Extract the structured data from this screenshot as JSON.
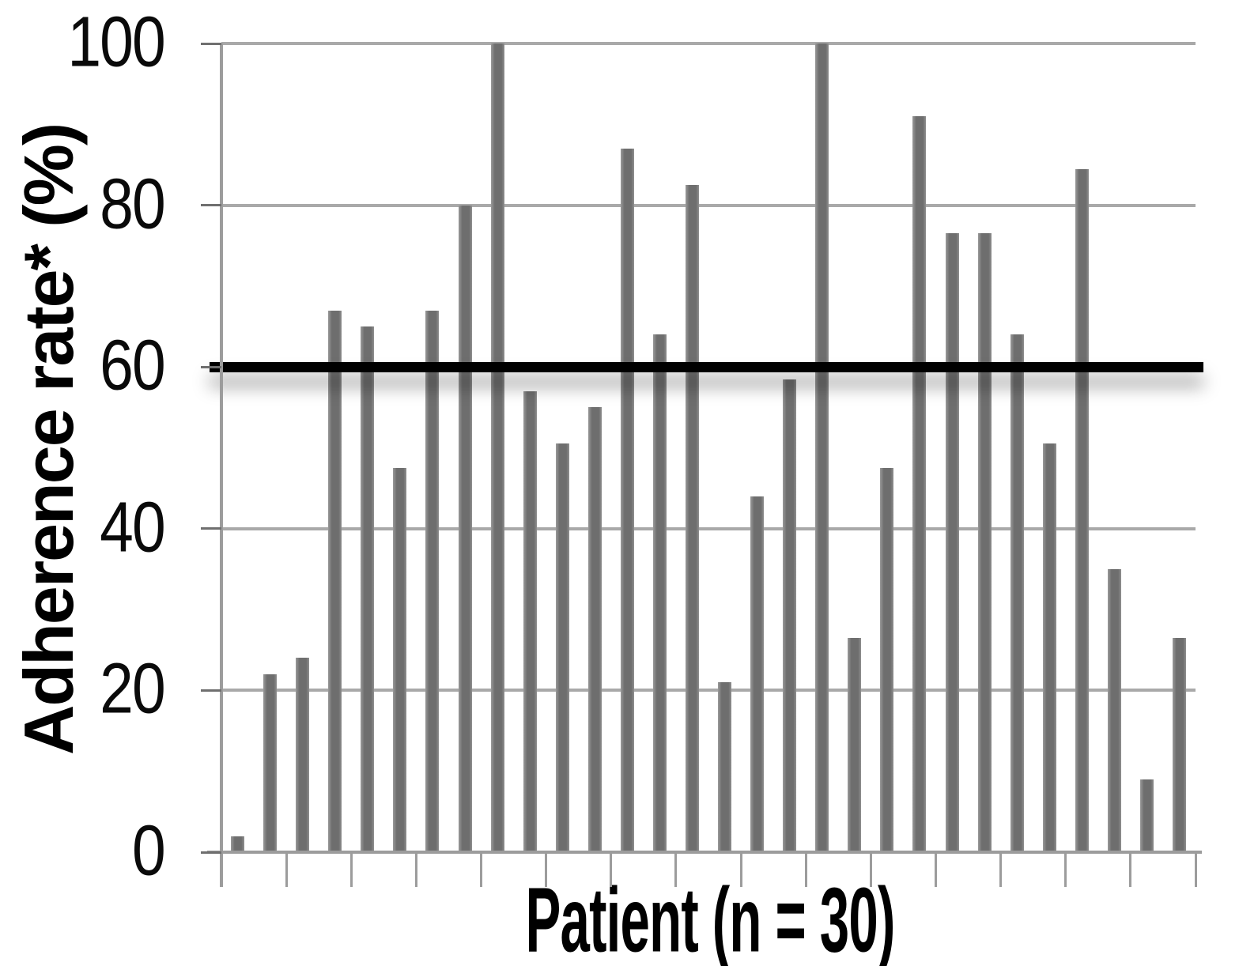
{
  "figure": {
    "type_hint": "excel-style bar chart, grayscale, no chart title, no x tick labels",
    "background": "#ffffff"
  },
  "chart_data": {
    "type": "bar",
    "title": "",
    "xlabel": "Patient (n = 30)",
    "ylabel": "Adherence rate* (%)",
    "n_patients": 30,
    "ylim": [
      0,
      100
    ],
    "yticks": [
      0,
      20,
      40,
      60,
      80,
      100
    ],
    "x_tick_marks": 16,
    "grid": "horizontal gridlines at every 20, light gray",
    "legend_position": "none",
    "bar_color": "#6e6e6e",
    "gridline_color": "#a9a9a9",
    "axis_color": "#9c9c9c",
    "reference_line": {
      "value": 60,
      "color": "#000000",
      "thickness_px": 13,
      "note": "thick black horizontal threshold line with drop shadow"
    },
    "values": [
      2,
      22,
      24,
      67,
      65,
      47.5,
      67,
      80,
      100,
      57,
      50.5,
      55,
      87,
      64,
      82.5,
      21,
      44,
      58.5,
      100,
      26.5,
      47.5,
      91,
      76.5,
      76.5,
      64,
      50.5,
      84.5,
      35,
      9,
      26.5
    ]
  }
}
